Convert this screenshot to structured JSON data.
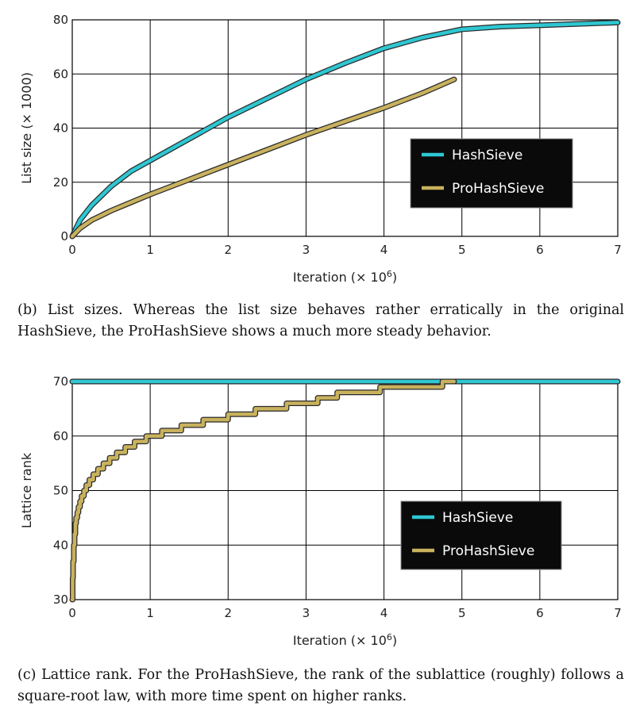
{
  "figures": [
    {
      "caption": "(b) List sizes. Whereas the list size behaves rather erratically in the original HashSieve, the ProHashSieve shows a much more steady behavior.",
      "chart_data": {
        "type": "line",
        "xlabel": "Iteration (× 10",
        "xlabel_sup": "6",
        "xlabel_close": ")",
        "ylabel": "List size (× 1000)",
        "xlim": [
          0,
          7
        ],
        "ylim": [
          0,
          80
        ],
        "xticks": [
          0,
          1,
          2,
          3,
          4,
          5,
          6,
          7
        ],
        "yticks": [
          0,
          20,
          40,
          60,
          80
        ],
        "grid": true,
        "legend_position": "lower-right",
        "series": [
          {
            "name": "HashSieve",
            "color": "#2ec7d2",
            "x": [
              0,
              0.1,
              0.25,
              0.5,
              0.75,
              1.0,
              1.25,
              1.5,
              1.75,
              2.0,
              2.5,
              3.0,
              3.5,
              4.0,
              4.5,
              5.0,
              5.5,
              6.0,
              6.5,
              7.0
            ],
            "y": [
              0,
              6,
              11.5,
              18.5,
              24,
              28,
              32,
              36,
              40,
              44,
              51,
              58,
              64,
              69.5,
              73.5,
              76.5,
              77.5,
              78,
              78.5,
              79
            ]
          },
          {
            "name": "ProHashSieve",
            "color": "#c9b25e",
            "x": [
              0,
              0.1,
              0.25,
              0.5,
              0.75,
              1.0,
              1.5,
              2.0,
              2.5,
              3.0,
              3.5,
              4.0,
              4.5,
              4.9
            ],
            "y": [
              0,
              3,
              6,
              9.5,
              12.5,
              15.5,
              21,
              26.5,
              32,
              37.5,
              42.5,
              47.5,
              53,
              58
            ]
          }
        ]
      }
    },
    {
      "caption": "(c) Lattice rank. For the ProHashSieve, the rank of the sublattice (roughly) follows a square-root law, with more time spent on higher ranks.",
      "chart_data": {
        "type": "line",
        "xlabel": "Iteration (× 10",
        "xlabel_sup": "6",
        "xlabel_close": ")",
        "ylabel": "Lattice rank",
        "xlim": [
          0,
          7
        ],
        "ylim": [
          30,
          70
        ],
        "xticks": [
          0,
          1,
          2,
          3,
          4,
          5,
          6,
          7
        ],
        "yticks": [
          30,
          40,
          50,
          60,
          70
        ],
        "grid": true,
        "legend_position": "lower-right",
        "series": [
          {
            "name": "HashSieve",
            "color": "#2ec7d2",
            "step": false,
            "x": [
              0,
              7
            ],
            "y": [
              70,
              70
            ]
          },
          {
            "name": "ProHashSieve",
            "color": "#c9b25e",
            "step": true,
            "x": [
              0,
              0.005,
              0.01,
              0.02,
              0.03,
              0.04,
              0.05,
              0.065,
              0.08,
              0.1,
              0.12,
              0.15,
              0.18,
              0.22,
              0.27,
              0.33,
              0.4,
              0.48,
              0.57,
              0.68,
              0.8,
              0.95,
              1.15,
              1.4,
              1.68,
              2.0,
              2.35,
              2.75,
              3.15,
              3.4,
              3.95,
              4.75,
              4.9
            ],
            "y": [
              30,
              34,
              37,
              40,
              42,
              44,
              45,
              46,
              47,
              48,
              49,
              50,
              51,
              52,
              53,
              54,
              55,
              56,
              57,
              58,
              59,
              60,
              61,
              62,
              63,
              64,
              65,
              66,
              67,
              68,
              69,
              70,
              70
            ]
          }
        ]
      }
    }
  ]
}
